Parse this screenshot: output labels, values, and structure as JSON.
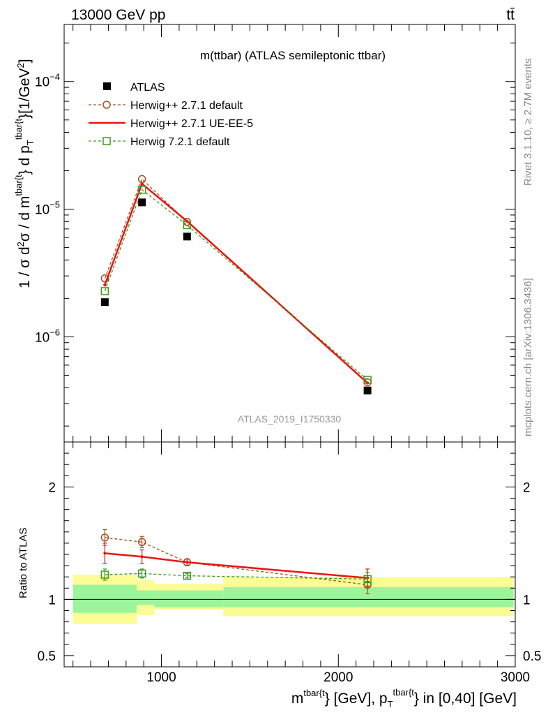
{
  "header": {
    "left": "13000 GeV pp",
    "right": "tt̄"
  },
  "side_labels": {
    "rivet": "Rivet 3.1.10, ≥ 2.7M events",
    "mcplots": "mcplots.cern.ch [arXiv:1306.3436]"
  },
  "colors": {
    "data": "#000000",
    "h271_default": "#a0501e",
    "h271_ueee5": "#ee1111",
    "h721_default": "#3b9a1a",
    "band_inner": "#9cf59a",
    "band_outer": "#fcfc96",
    "watermark": "#999999"
  },
  "chart_data": [
    {
      "type": "scatter",
      "title": "m(ttbar) (ATLAS semileptonic ttbar)",
      "watermark": "ATLAS_2019_I1750330",
      "ylabel_parts": {
        "a": "1 / σ d",
        "sup2": "2",
        "b": "σ / d m",
        "sup_ttbar": "tbar{t",
        "c": "} d p",
        "sub_T": "T",
        "d": "}[1/GeV",
        "e": "]"
      },
      "yscale": "log",
      "xlim": [
        450,
        3000
      ],
      "ylim": [
        1.5e-07,
        0.00028
      ],
      "y_tick_labels": [
        {
          "value": 1e-06,
          "mantissa": "10",
          "exp": "−6"
        },
        {
          "value": 1e-05,
          "mantissa": "10",
          "exp": "−5"
        },
        {
          "value": 0.0001,
          "mantissa": "10",
          "exp": "−4"
        }
      ],
      "legend_position": "top-left",
      "series": [
        {
          "name": "ATLAS",
          "key": "data",
          "x": [
            680,
            890,
            1145,
            2165
          ],
          "y": [
            1.87e-06,
            1.13e-05,
            6.1e-06,
            3.8e-07
          ],
          "style": "square-filled"
        },
        {
          "name": "Herwig++ 2.7.1 default",
          "key": "h271_default",
          "x": [
            680,
            890,
            1145,
            2165
          ],
          "y": [
            2.87e-06,
            1.72e-05,
            7.95e-06,
            4.4e-07
          ],
          "style": "circle-open-dashed"
        },
        {
          "name": "Herwig++ 2.7.1 UE-EE-5",
          "key": "h271_ueee5",
          "x": [
            680,
            890,
            1145,
            2165
          ],
          "y": [
            2.55e-06,
            1.58e-05,
            8.05e-06,
            4.35e-07
          ],
          "style": "solid-line"
        },
        {
          "name": "Herwig 7.2.1 default",
          "key": "h721_default",
          "x": [
            680,
            890,
            1145,
            2165
          ],
          "y": [
            2.28e-06,
            1.42e-05,
            7.5e-06,
            4.6e-07
          ],
          "style": "square-open-dashed"
        }
      ]
    },
    {
      "type": "scatter",
      "ylabel": "Ratio to ATLAS",
      "xlabel_parts": {
        "a": "m",
        "sup1": "tbar{t",
        "b": "} [GeV], p",
        "sub_T": "T",
        "sup2": "tbar{t",
        "c": "} in [0,40] [GeV]"
      },
      "xlim": [
        450,
        3000
      ],
      "ylim": [
        0.4,
        2.4
      ],
      "x_tick_labels": [
        {
          "value": 1000,
          "label": "1000"
        },
        {
          "value": 2000,
          "label": "2000"
        },
        {
          "value": 3000,
          "label": "3000"
        }
      ],
      "y_tick_labels": [
        {
          "value": 0.5,
          "label": "0.5"
        },
        {
          "value": 1,
          "label": "1"
        },
        {
          "value": 2,
          "label": "2"
        }
      ],
      "uncertainty_bands": [
        {
          "x": [
            500,
            860
          ],
          "inner": [
            0.88,
            1.13
          ],
          "outer": [
            0.78,
            1.22
          ]
        },
        {
          "x": [
            860,
            960
          ],
          "inner": [
            0.95,
            1.08
          ],
          "outer": [
            0.86,
            1.17
          ]
        },
        {
          "x": [
            960,
            1350
          ],
          "inner": [
            0.93,
            1.08
          ],
          "outer": [
            0.91,
            1.14
          ]
        },
        {
          "x": [
            1350,
            2990
          ],
          "inner": [
            0.93,
            1.11
          ],
          "outer": [
            0.85,
            1.2
          ]
        }
      ],
      "series": [
        {
          "name": "Herwig++ 2.7.1 default",
          "key": "h271_default",
          "x": [
            680,
            890,
            1145,
            2165
          ],
          "y": [
            1.55,
            1.51,
            1.33,
            1.13
          ],
          "err": [
            0.07,
            0.05,
            0.03,
            0.08
          ]
        },
        {
          "name": "Herwig++ 2.7.1 UE-EE-5",
          "key": "h271_ueee5",
          "x": [
            680,
            890,
            1145,
            2165
          ],
          "y": [
            1.41,
            1.38,
            1.33,
            1.19
          ],
          "err": [
            0.09,
            0.06,
            0.03,
            0.08
          ]
        },
        {
          "name": "Herwig 7.2.1 default",
          "key": "h721_default",
          "x": [
            680,
            890,
            1145,
            2165
          ],
          "y": [
            1.22,
            1.23,
            1.21,
            1.18
          ],
          "err": [
            0.05,
            0.04,
            0.02,
            0.06
          ]
        }
      ]
    }
  ]
}
